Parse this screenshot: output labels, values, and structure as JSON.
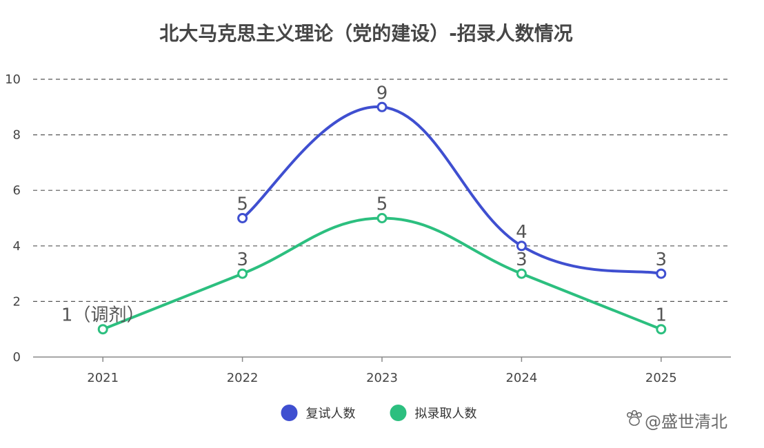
{
  "chart_data": {
    "type": "line",
    "title": "北大马克思主义理论（党的建设）-招录人数情况",
    "categories": [
      "2021",
      "2022",
      "2023",
      "2024",
      "2025"
    ],
    "ylim": [
      0,
      10
    ],
    "yticks": [
      0,
      2,
      4,
      6,
      8,
      10
    ],
    "grid": true,
    "legend_position": "bottom",
    "series": [
      {
        "name": "复试人数",
        "color": "#3f4fd0",
        "values": [
          null,
          5,
          9,
          4,
          3
        ],
        "labels": [
          "",
          "5",
          "9",
          "4",
          "3"
        ]
      },
      {
        "name": "拟录取人数",
        "color": "#2cbf7f",
        "values": [
          1,
          3,
          5,
          3,
          1
        ],
        "labels": [
          "1（调剂）",
          "3",
          "5",
          "3",
          "1"
        ]
      }
    ]
  },
  "watermark": {
    "text": "@盛世清北"
  }
}
